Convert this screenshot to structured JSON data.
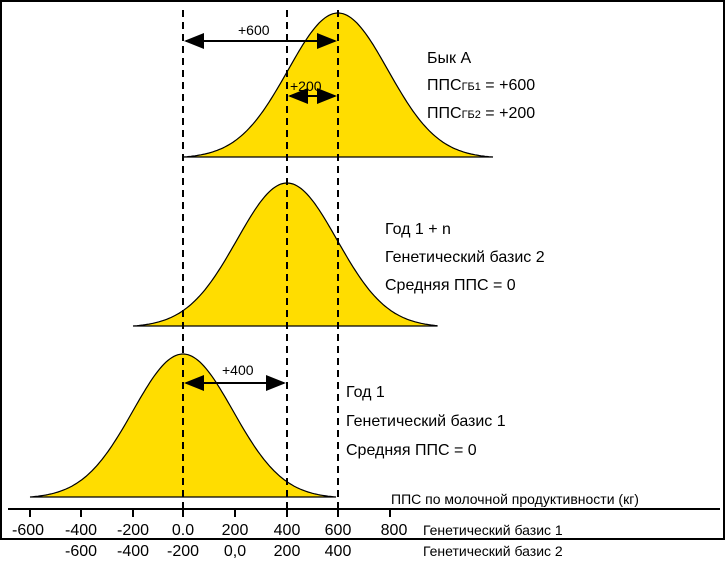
{
  "curves": {
    "bull": {
      "title": "Бык А",
      "line1": {
        "prefix": "ППС",
        "sub": "ГБ1",
        "suffix": " = +600"
      },
      "line2": {
        "prefix": "ППС",
        "sub": "ГБ2",
        "suffix": " = +200"
      },
      "diff_600": "+600",
      "diff_200": "+200"
    },
    "year_n": {
      "title": "Год 1 + n",
      "line1": "Генетический базис 2",
      "line2": "Средняя ППС = 0"
    },
    "year_1": {
      "title": "Год 1",
      "line1": "Генетический базис 1",
      "line2": "Средняя ППС = 0",
      "diff_400": "+400"
    }
  },
  "axis": {
    "title": "ППС по молочной продуктивности (кг)",
    "row1_label": "Генетический базис 1",
    "row2_label": "Генетический базис 2",
    "row1_ticks": [
      "-600",
      "-400",
      "-200",
      "0.0",
      "200",
      "400",
      "600",
      "800"
    ],
    "row2_ticks": [
      "-600",
      "-400",
      "-200",
      "0,0",
      "200",
      "400"
    ]
  },
  "colors": {
    "fill": "#FFDD00",
    "stroke": "#000000"
  }
}
